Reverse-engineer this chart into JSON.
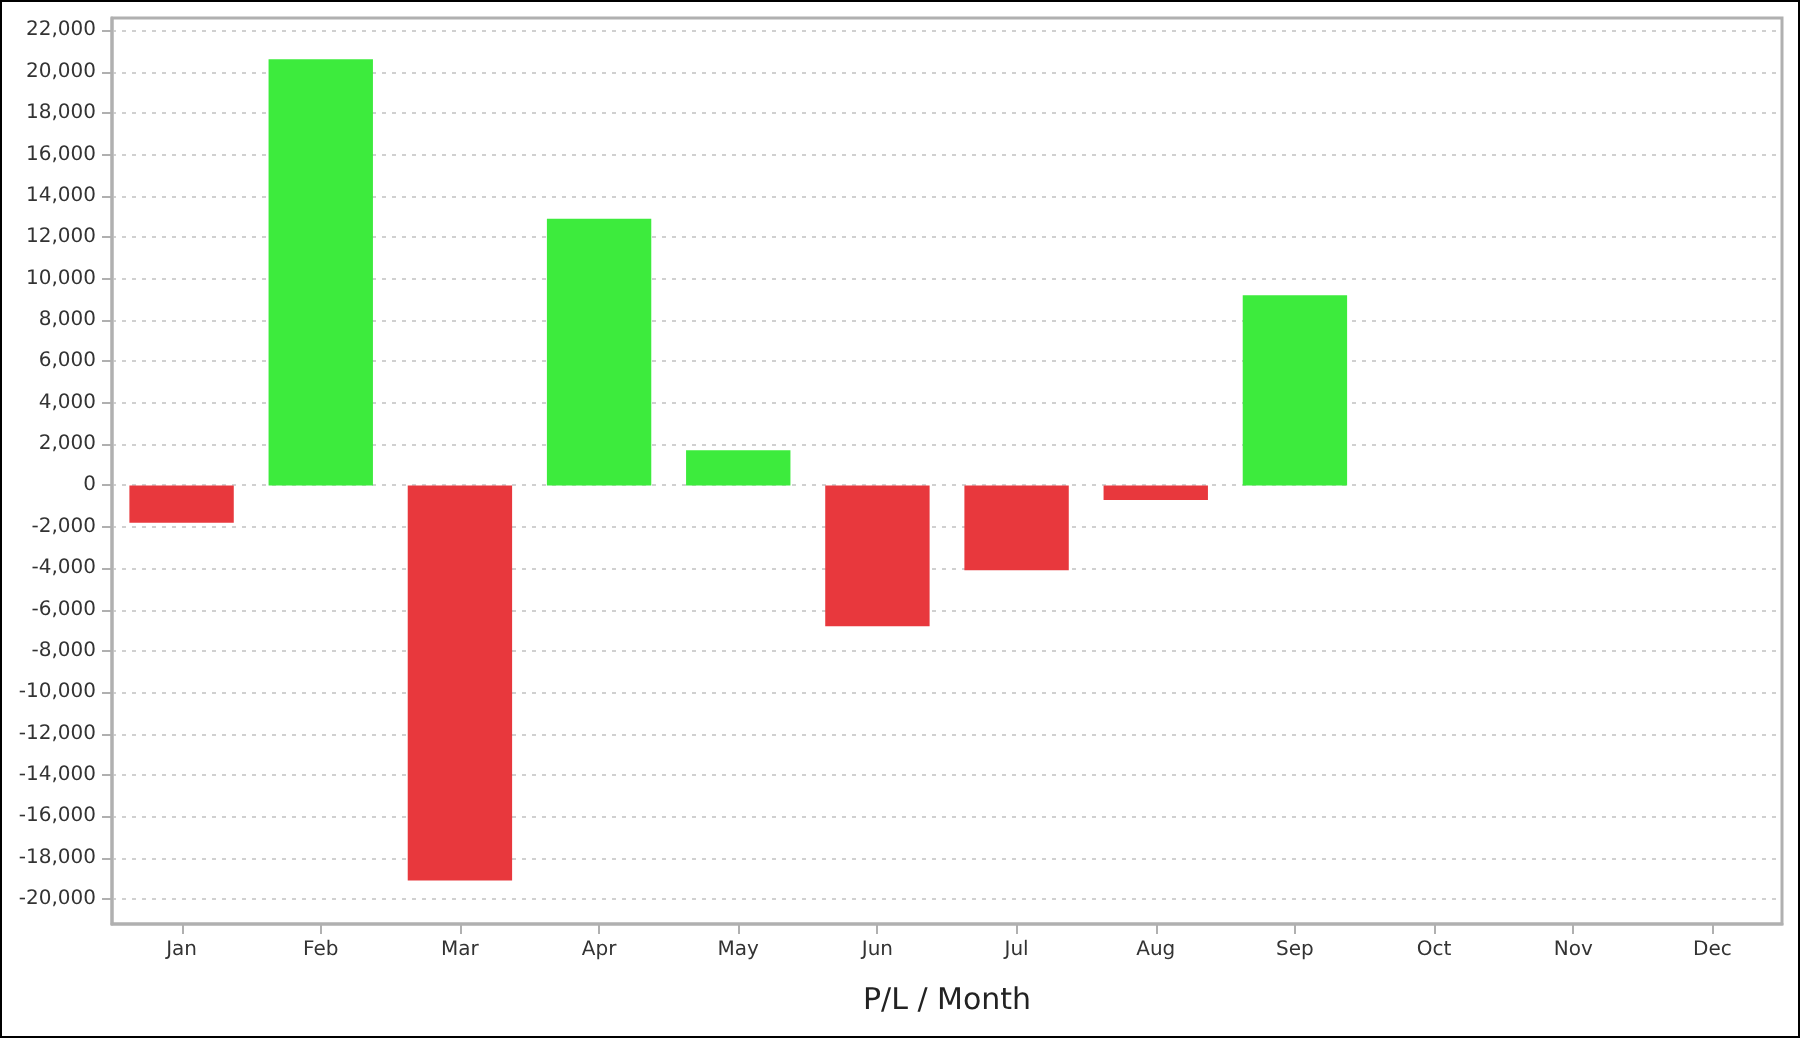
{
  "chart_data": {
    "type": "bar",
    "xlabel": "P/L / Month",
    "categories": [
      "Jan",
      "Feb",
      "Mar",
      "Apr",
      "May",
      "Jun",
      "Jul",
      "Aug",
      "Sep",
      "Oct",
      "Nov",
      "Dec"
    ],
    "values": [
      -1800,
      20600,
      -19100,
      12900,
      1700,
      -6800,
      -4100,
      -700,
      9200,
      null,
      null,
      null
    ],
    "colors": [
      "#e8383d",
      "#3deb3d",
      "#e8383d",
      "#3deb3d",
      "#3deb3d",
      "#e8383d",
      "#e8383d",
      "#e8383d",
      "#3deb3d",
      null,
      null,
      null
    ],
    "ylim": [
      -21200,
      22600
    ],
    "yticks": [
      {
        "value": -20000,
        "label": "-20,000"
      },
      {
        "value": -18000,
        "label": "-18,000"
      },
      {
        "value": -16000,
        "label": "-16,000"
      },
      {
        "value": -14000,
        "label": "-14,000"
      },
      {
        "value": -12000,
        "label": "-12,000"
      },
      {
        "value": -10000,
        "label": "-10,000"
      },
      {
        "value": -8000,
        "label": "-8,000"
      },
      {
        "value": -6000,
        "label": "-6,000"
      },
      {
        "value": -4000,
        "label": "-4,000"
      },
      {
        "value": -2000,
        "label": "-2,000"
      },
      0,
      {
        "value": 2000,
        "label": "2,000"
      },
      {
        "value": 4000,
        "label": "4,000"
      },
      {
        "value": 6000,
        "label": "6,000"
      },
      {
        "value": 8000,
        "label": "8,000"
      },
      {
        "value": 10000,
        "label": "10,000"
      },
      {
        "value": 12000,
        "label": "12,000"
      },
      {
        "value": 14000,
        "label": "14,000"
      },
      {
        "value": 16000,
        "label": "16,000"
      },
      {
        "value": 18000,
        "label": "18,000"
      },
      {
        "value": 20000,
        "label": "20,000"
      },
      {
        "value": 22000,
        "label": "22,000"
      }
    ],
    "grid": "y"
  }
}
